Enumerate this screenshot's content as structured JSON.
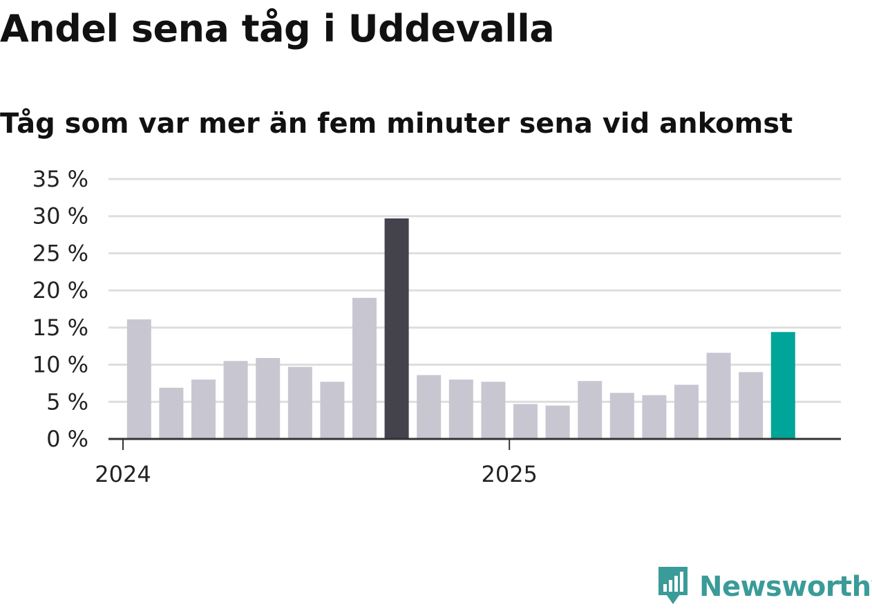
{
  "chart_data": {
    "type": "bar",
    "title": "Andel sena tåg i Uddevalla",
    "subtitle": "Tåg som var mer än fem minuter sena vid ankomst",
    "xlabel": "",
    "ylabel": "",
    "ylim": [
      0,
      35
    ],
    "yticks": [
      0,
      5,
      10,
      15,
      20,
      25,
      30,
      35
    ],
    "ytick_labels": [
      "0 %",
      "5 %",
      "10 %",
      "15 %",
      "20 %",
      "25 %",
      "30 %",
      "35 %"
    ],
    "xtick_labels": [
      "2024",
      "2025"
    ],
    "categories": [
      "2024-01",
      "2024-02",
      "2024-03",
      "2024-04",
      "2024-05",
      "2024-06",
      "2024-07",
      "2024-08",
      "2024-09",
      "2024-10",
      "2024-11",
      "2024-12",
      "2025-01",
      "2025-02",
      "2025-03",
      "2025-04",
      "2025-05",
      "2025-06",
      "2025-07",
      "2025-08",
      "2025-09"
    ],
    "values": [
      16.1,
      6.9,
      8.0,
      10.5,
      10.9,
      9.7,
      7.7,
      19.0,
      29.7,
      8.6,
      8.0,
      7.7,
      4.7,
      4.5,
      7.8,
      6.2,
      5.9,
      7.3,
      11.6,
      9.0,
      14.4
    ],
    "highlight": {
      "max_index": 8,
      "latest_index": 20
    },
    "grid": true,
    "colors": {
      "default": "#c8c7d1",
      "max": "#43424d",
      "latest": "#00a599",
      "grid": "#dddddd",
      "axis": "#333333"
    }
  },
  "brand": {
    "name": "Newsworthy",
    "icon": "newsworthy-logo-icon",
    "color": "#3a9b98"
  }
}
